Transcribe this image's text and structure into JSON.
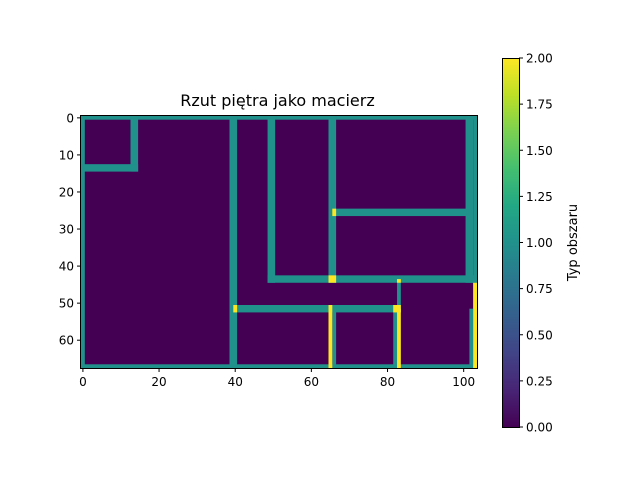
{
  "chart_data": {
    "type": "heatmap",
    "title": "Rzut piętra jako macierz",
    "xlabel": "",
    "ylabel": "",
    "xlim": [
      -0.5,
      103.5
    ],
    "ylim": [
      67.5,
      -0.5
    ],
    "x_ticks": [
      0,
      20,
      40,
      60,
      80,
      100
    ],
    "y_ticks": [
      0,
      10,
      20,
      30,
      40,
      50,
      60
    ],
    "grid": false,
    "colormap": "viridis",
    "colors": {
      "0": "#440154",
      "1": "#21918c",
      "2": "#fde725"
    },
    "colorbar": {
      "label": "Typ obszaru",
      "range": [
        0.0,
        2.0
      ],
      "ticks": [
        "0.00",
        "0.25",
        "0.50",
        "0.75",
        "1.00",
        "1.25",
        "1.50",
        "1.75",
        "2.00"
      ]
    },
    "matrix_shape": [
      68,
      104
    ],
    "matrix_background_value": 0,
    "cells": [
      {
        "rows": [
          0,
          67
        ],
        "cols": [
          0,
          0
        ],
        "value": 1
      },
      {
        "rows": [
          0,
          67
        ],
        "cols": [
          103,
          103
        ],
        "value": 1
      },
      {
        "rows": [
          67,
          67
        ],
        "cols": [
          0,
          103
        ],
        "value": 1
      },
      {
        "rows": [
          0,
          0
        ],
        "cols": [
          0,
          103
        ],
        "value": 1
      },
      {
        "rows": [
          0,
          14
        ],
        "cols": [
          13,
          14
        ],
        "value": 1
      },
      {
        "rows": [
          13,
          14
        ],
        "cols": [
          0,
          14
        ],
        "value": 1
      },
      {
        "rows": [
          0,
          67
        ],
        "cols": [
          39,
          40
        ],
        "value": 1
      },
      {
        "rows": [
          0,
          44
        ],
        "cols": [
          49,
          50
        ],
        "value": 1
      },
      {
        "rows": [
          0,
          44
        ],
        "cols": [
          65,
          66
        ],
        "value": 1
      },
      {
        "rows": [
          0,
          44
        ],
        "cols": [
          101,
          102
        ],
        "value": 1
      },
      {
        "rows": [
          43,
          44
        ],
        "cols": [
          49,
          103
        ],
        "value": 1
      },
      {
        "rows": [
          25,
          26
        ],
        "cols": [
          66,
          101
        ],
        "value": 1
      },
      {
        "rows": [
          44,
          52
        ],
        "cols": [
          83,
          83
        ],
        "value": 1
      },
      {
        "rows": [
          51,
          52
        ],
        "cols": [
          40,
          83
        ],
        "value": 1
      },
      {
        "rows": [
          52,
          67
        ],
        "cols": [
          66,
          66
        ],
        "value": 1
      },
      {
        "rows": [
          52,
          67
        ],
        "cols": [
          82,
          82
        ],
        "value": 1
      },
      {
        "rows": [
          52,
          67
        ],
        "cols": [
          102,
          102
        ],
        "value": 1
      },
      {
        "rows": [
          25,
          26
        ],
        "cols": [
          66,
          66
        ],
        "value": 2
      },
      {
        "rows": [
          43,
          44
        ],
        "cols": [
          65,
          66
        ],
        "value": 2
      },
      {
        "rows": [
          44,
          44
        ],
        "cols": [
          83,
          83
        ],
        "value": 2
      },
      {
        "rows": [
          51,
          52
        ],
        "cols": [
          40,
          40
        ],
        "value": 2
      },
      {
        "rows": [
          51,
          52
        ],
        "cols": [
          82,
          83
        ],
        "value": 2
      },
      {
        "rows": [
          51,
          67
        ],
        "cols": [
          65,
          65
        ],
        "value": 2
      },
      {
        "rows": [
          52,
          67
        ],
        "cols": [
          83,
          83
        ],
        "value": 2
      },
      {
        "rows": [
          45,
          67
        ],
        "cols": [
          103,
          103
        ],
        "value": 2
      }
    ]
  }
}
